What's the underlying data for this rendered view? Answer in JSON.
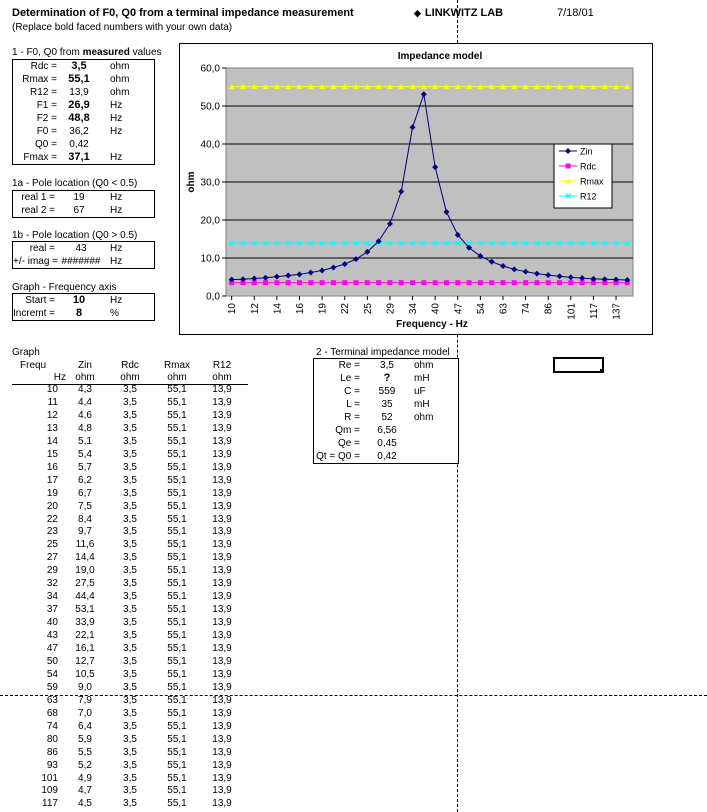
{
  "header": {
    "title": "Determination of F0, Q0 from a terminal impedance measurement",
    "subtitle": "(Replace bold faced numbers with your own data)",
    "lab": "LINKWITZ LAB",
    "lab_icon": "diamond-bullet",
    "date": "7/18/01"
  },
  "sec1": {
    "title_pre": "1 - F0, Q0 from ",
    "title_bold": "measured",
    "title_post": " values",
    "rows": [
      {
        "label": "Rdc =",
        "value": "3,5",
        "unit": "ohm",
        "bold": true
      },
      {
        "label": "Rmax =",
        "value": "55,1",
        "unit": "ohm",
        "bold": true
      },
      {
        "label": "R12 =",
        "value": "13,9",
        "unit": "ohm",
        "bold": false
      },
      {
        "label": "F1 =",
        "value": "26,9",
        "unit": "Hz",
        "bold": true
      },
      {
        "label": "F2 =",
        "value": "48,8",
        "unit": "Hz",
        "bold": true
      },
      {
        "label": "F0 =",
        "value": "36,2",
        "unit": "Hz",
        "bold": false
      },
      {
        "label": "Q0 =",
        "value": "0,42",
        "unit": "",
        "bold": false
      },
      {
        "label": "Fmax =",
        "value": "37,1",
        "unit": "Hz",
        "bold": true
      }
    ]
  },
  "sec1a": {
    "title": "1a - Pole location (Q0 < 0.5)",
    "rows": [
      {
        "label": "real 1 =",
        "value": "19",
        "unit": "Hz"
      },
      {
        "label": "real 2 =",
        "value": "67",
        "unit": "Hz"
      }
    ]
  },
  "sec1b": {
    "title": "1b - Pole location (Q0 > 0.5)",
    "rows": [
      {
        "label": "real =",
        "value": "43",
        "unit": "Hz"
      },
      {
        "label": "+/- imag =",
        "value": "#######",
        "unit": "Hz"
      }
    ]
  },
  "secfreq": {
    "title": "Graph - Frequency axis",
    "rows": [
      {
        "label": "Start =",
        "value": "10",
        "unit": "Hz",
        "bold": true
      },
      {
        "label": "Incremt =",
        "value": "8",
        "unit": "%",
        "bold": true
      }
    ]
  },
  "sec2": {
    "title": "2 - Terminal impedance model",
    "rows": [
      {
        "label": "Re =",
        "value": "3,5",
        "unit": "ohm"
      },
      {
        "label": "Le =",
        "value": "?",
        "unit": "mH",
        "bold": true
      },
      {
        "label": "C =",
        "value": "559",
        "unit": "uF"
      },
      {
        "label": "L =",
        "value": "35",
        "unit": "mH"
      },
      {
        "label": "R =",
        "value": "52",
        "unit": "ohm"
      },
      {
        "label": "Qm =",
        "value": "6,56",
        "unit": ""
      },
      {
        "label": "Qe =",
        "value": "0,45",
        "unit": ""
      },
      {
        "label": "Qt = Q0 =",
        "value": "0,42",
        "unit": ""
      }
    ]
  },
  "table": {
    "title": "Graph",
    "headers": [
      {
        "l1": "Frequ",
        "l2": "Hz"
      },
      {
        "l1": "Zin",
        "l2": "ohm"
      },
      {
        "l1": "Rdc",
        "l2": "ohm"
      },
      {
        "l1": "Rmax",
        "l2": "ohm"
      },
      {
        "l1": "R12",
        "l2": "ohm"
      }
    ],
    "rows": [
      [
        "10",
        "4,3",
        "3,5",
        "55,1",
        "13,9"
      ],
      [
        "11",
        "4,4",
        "3,5",
        "55,1",
        "13,9"
      ],
      [
        "12",
        "4,6",
        "3,5",
        "55,1",
        "13,9"
      ],
      [
        "13",
        "4,8",
        "3,5",
        "55,1",
        "13,9"
      ],
      [
        "14",
        "5,1",
        "3,5",
        "55,1",
        "13,9"
      ],
      [
        "15",
        "5,4",
        "3,5",
        "55,1",
        "13,9"
      ],
      [
        "16",
        "5,7",
        "3,5",
        "55,1",
        "13,9"
      ],
      [
        "17",
        "6,2",
        "3,5",
        "55,1",
        "13,9"
      ],
      [
        "19",
        "6,7",
        "3,5",
        "55,1",
        "13,9"
      ],
      [
        "20",
        "7,5",
        "3,5",
        "55,1",
        "13,9"
      ],
      [
        "22",
        "8,4",
        "3,5",
        "55,1",
        "13,9"
      ],
      [
        "23",
        "9,7",
        "3,5",
        "55,1",
        "13,9"
      ],
      [
        "25",
        "11,6",
        "3,5",
        "55,1",
        "13,9"
      ],
      [
        "27",
        "14,4",
        "3,5",
        "55,1",
        "13,9"
      ],
      [
        "29",
        "19,0",
        "3,5",
        "55,1",
        "13,9"
      ],
      [
        "32",
        "27,5",
        "3,5",
        "55,1",
        "13,9"
      ],
      [
        "34",
        "44,4",
        "3,5",
        "55,1",
        "13,9"
      ],
      [
        "37",
        "53,1",
        "3,5",
        "55,1",
        "13,9"
      ],
      [
        "40",
        "33,9",
        "3,5",
        "55,1",
        "13,9"
      ],
      [
        "43",
        "22,1",
        "3,5",
        "55,1",
        "13,9"
      ],
      [
        "47",
        "16,1",
        "3,5",
        "55,1",
        "13,9"
      ],
      [
        "50",
        "12,7",
        "3,5",
        "55,1",
        "13,9"
      ],
      [
        "54",
        "10,5",
        "3,5",
        "55,1",
        "13,9"
      ],
      [
        "59",
        "9,0",
        "3,5",
        "55,1",
        "13,9"
      ],
      [
        "63",
        "7,9",
        "3,5",
        "55,1",
        "13,9"
      ],
      [
        "68",
        "7,0",
        "3,5",
        "55,1",
        "13,9"
      ],
      [
        "74",
        "6,4",
        "3,5",
        "55,1",
        "13,9"
      ],
      [
        "80",
        "5,9",
        "3,5",
        "55,1",
        "13,9"
      ],
      [
        "86",
        "5,5",
        "3,5",
        "55,1",
        "13,9"
      ],
      [
        "93",
        "5,2",
        "3,5",
        "55,1",
        "13,9"
      ],
      [
        "101",
        "4,9",
        "3,5",
        "55,1",
        "13,9"
      ],
      [
        "109",
        "4,7",
        "3,5",
        "55,1",
        "13,9"
      ],
      [
        "117",
        "4,5",
        "3,5",
        "55,1",
        "13,9"
      ]
    ]
  },
  "chart_data": {
    "type": "line",
    "title": "Impedance model",
    "xlabel": "Frequency - Hz",
    "ylabel": "ohm",
    "ylim": [
      0,
      60
    ],
    "yticks": [
      "0,0",
      "10,0",
      "20,0",
      "30,0",
      "40,0",
      "50,0",
      "60,0"
    ],
    "xtick_labels": [
      "10",
      "12",
      "14",
      "16",
      "19",
      "22",
      "25",
      "29",
      "34",
      "40",
      "47",
      "54",
      "63",
      "74",
      "86",
      "101",
      "117",
      "137"
    ],
    "x": [
      10,
      11,
      12,
      13,
      14,
      15,
      16,
      17,
      19,
      20,
      22,
      23,
      25,
      27,
      29,
      32,
      34,
      37,
      40,
      43,
      47,
      50,
      54,
      59,
      63,
      68,
      74,
      80,
      86,
      93,
      101,
      109,
      117,
      127,
      137,
      148
    ],
    "series": [
      {
        "name": "Zin",
        "color": "#000080",
        "marker": "diamond",
        "values": [
          4.3,
          4.4,
          4.6,
          4.8,
          5.1,
          5.4,
          5.7,
          6.2,
          6.7,
          7.5,
          8.4,
          9.7,
          11.6,
          14.4,
          19.0,
          27.5,
          44.4,
          53.1,
          33.9,
          22.1,
          16.1,
          12.7,
          10.5,
          9.0,
          7.9,
          7.0,
          6.4,
          5.9,
          5.5,
          5.2,
          4.9,
          4.7,
          4.5,
          4.4,
          4.3,
          4.2
        ]
      },
      {
        "name": "Rdc",
        "color": "#ff00ff",
        "marker": "square",
        "values": [
          3.5,
          3.5,
          3.5,
          3.5,
          3.5,
          3.5,
          3.5,
          3.5,
          3.5,
          3.5,
          3.5,
          3.5,
          3.5,
          3.5,
          3.5,
          3.5,
          3.5,
          3.5,
          3.5,
          3.5,
          3.5,
          3.5,
          3.5,
          3.5,
          3.5,
          3.5,
          3.5,
          3.5,
          3.5,
          3.5,
          3.5,
          3.5,
          3.5,
          3.5,
          3.5,
          3.5
        ]
      },
      {
        "name": "Rmax",
        "color": "#ffff00",
        "marker": "triangle",
        "values": [
          55.1,
          55.1,
          55.1,
          55.1,
          55.1,
          55.1,
          55.1,
          55.1,
          55.1,
          55.1,
          55.1,
          55.1,
          55.1,
          55.1,
          55.1,
          55.1,
          55.1,
          55.1,
          55.1,
          55.1,
          55.1,
          55.1,
          55.1,
          55.1,
          55.1,
          55.1,
          55.1,
          55.1,
          55.1,
          55.1,
          55.1,
          55.1,
          55.1,
          55.1,
          55.1,
          55.1
        ]
      },
      {
        "name": "R12",
        "color": "#00ffff",
        "marker": "x",
        "values": [
          13.9,
          13.9,
          13.9,
          13.9,
          13.9,
          13.9,
          13.9,
          13.9,
          13.9,
          13.9,
          13.9,
          13.9,
          13.9,
          13.9,
          13.9,
          13.9,
          13.9,
          13.9,
          13.9,
          13.9,
          13.9,
          13.9,
          13.9,
          13.9,
          13.9,
          13.9,
          13.9,
          13.9,
          13.9,
          13.9,
          13.9,
          13.9,
          13.9,
          13.9,
          13.9,
          13.9
        ]
      }
    ],
    "plot_background": "#c0c0c0",
    "grid": true,
    "legend_position": "right"
  }
}
